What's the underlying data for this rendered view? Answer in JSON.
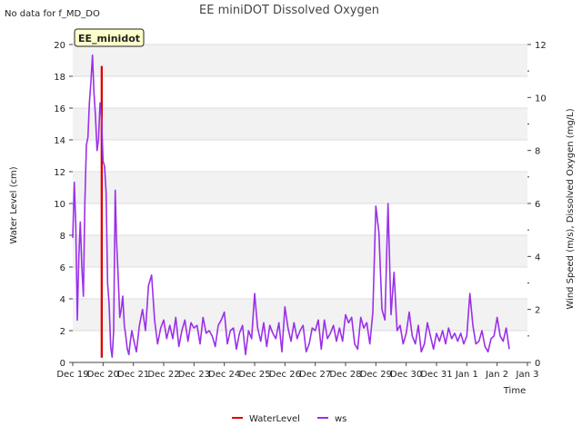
{
  "status_text": "No data for f_MD_DO",
  "site_label": "EE_minidot",
  "chart_data": {
    "type": "line",
    "title": "EE miniDOT Dissolved Oxygen",
    "xlabel": "Time",
    "ylabel_left": "Water Level (cm)",
    "ylabel_right": "Wind Speed (m/s), Dissolved Oxygen (mg/L)",
    "x_range_days": [
      0,
      15
    ],
    "x_ticks": [
      {
        "day": 0,
        "label": "Dec 19"
      },
      {
        "day": 1,
        "label": "Dec 20"
      },
      {
        "day": 2,
        "label": "Dec 21"
      },
      {
        "day": 3,
        "label": "Dec 22"
      },
      {
        "day": 4,
        "label": "Dec 23"
      },
      {
        "day": 5,
        "label": "Dec 24"
      },
      {
        "day": 6,
        "label": "Dec 25"
      },
      {
        "day": 7,
        "label": "Dec 26"
      },
      {
        "day": 8,
        "label": "Dec 27"
      },
      {
        "day": 9,
        "label": "Dec 28"
      },
      {
        "day": 10,
        "label": "Dec 29"
      },
      {
        "day": 11,
        "label": "Dec 30"
      },
      {
        "day": 12,
        "label": "Dec 31"
      },
      {
        "day": 13,
        "label": "Jan 1"
      },
      {
        "day": 14,
        "label": "Jan 2"
      },
      {
        "day": 15,
        "label": "Jan 3"
      }
    ],
    "ylim_left": [
      0,
      20
    ],
    "yticks_left": [
      0,
      2,
      4,
      6,
      8,
      10,
      12,
      14,
      16,
      18,
      20
    ],
    "ylim_right": [
      0,
      12
    ],
    "yticks_right": [
      0,
      2,
      4,
      6,
      8,
      10,
      12
    ],
    "series": [
      {
        "name": "WaterLevel",
        "axis": "left",
        "color": "#dd0000",
        "x": [
          0.95,
          0.95,
          0.96,
          0.96
        ],
        "y": [
          0.3,
          18.6,
          18.6,
          0.3
        ]
      },
      {
        "name": "ws",
        "axis": "right",
        "color": "#9b30e8",
        "x": [
          0.0,
          0.05,
          0.1,
          0.15,
          0.2,
          0.25,
          0.3,
          0.35,
          0.4,
          0.45,
          0.5,
          0.55,
          0.6,
          0.65,
          0.7,
          0.75,
          0.8,
          0.85,
          0.9,
          0.95,
          1.0,
          1.05,
          1.1,
          1.15,
          1.2,
          1.25,
          1.3,
          1.35,
          1.4,
          1.45,
          1.5,
          1.55,
          1.6,
          1.65,
          1.7,
          1.75,
          1.8,
          1.85,
          1.9,
          1.95,
          2.0,
          2.1,
          2.2,
          2.3,
          2.4,
          2.5,
          2.6,
          2.7,
          2.8,
          2.9,
          3.0,
          3.1,
          3.2,
          3.3,
          3.4,
          3.5,
          3.6,
          3.7,
          3.8,
          3.9,
          4.0,
          4.1,
          4.2,
          4.3,
          4.4,
          4.5,
          4.6,
          4.7,
          4.8,
          4.9,
          5.0,
          5.1,
          5.2,
          5.3,
          5.4,
          5.5,
          5.6,
          5.7,
          5.8,
          5.9,
          6.0,
          6.1,
          6.2,
          6.3,
          6.4,
          6.5,
          6.6,
          6.7,
          6.8,
          6.9,
          7.0,
          7.1,
          7.2,
          7.3,
          7.4,
          7.5,
          7.6,
          7.7,
          7.8,
          7.9,
          8.0,
          8.1,
          8.2,
          8.3,
          8.4,
          8.5,
          8.6,
          8.7,
          8.8,
          8.9,
          9.0,
          9.1,
          9.2,
          9.3,
          9.4,
          9.5,
          9.6,
          9.7,
          9.8,
          9.9,
          10.0,
          10.1,
          10.2,
          10.3,
          10.4,
          10.5,
          10.6,
          10.7,
          10.8,
          10.9,
          11.0,
          11.1,
          11.2,
          11.3,
          11.4,
          11.5,
          11.6,
          11.7,
          11.8,
          11.9,
          12.0,
          12.1,
          12.2,
          12.3,
          12.4,
          12.5,
          12.6,
          12.7,
          12.8,
          12.9,
          13.0,
          13.1,
          13.2,
          13.3,
          13.4,
          13.5,
          13.6,
          13.7,
          13.8,
          13.9,
          14.0,
          14.1,
          14.2,
          14.3,
          14.4
        ],
        "y": [
          4.7,
          6.8,
          5.2,
          1.6,
          4.0,
          5.3,
          3.6,
          2.5,
          6.0,
          8.2,
          8.5,
          9.8,
          10.6,
          11.6,
          10.2,
          9.3,
          8.0,
          8.4,
          9.8,
          9.2,
          7.6,
          7.4,
          6.4,
          3.0,
          2.2,
          0.6,
          0.2,
          1.2,
          6.5,
          4.5,
          3.2,
          1.7,
          2.0,
          2.5,
          1.4,
          1.0,
          0.5,
          0.3,
          0.8,
          1.2,
          0.9,
          0.4,
          1.4,
          2.0,
          1.2,
          2.9,
          3.3,
          1.6,
          0.7,
          1.3,
          1.6,
          0.9,
          1.4,
          0.9,
          1.7,
          0.6,
          1.2,
          1.6,
          0.8,
          1.5,
          1.3,
          1.4,
          0.7,
          1.7,
          1.1,
          1.2,
          1.0,
          0.6,
          1.4,
          1.6,
          1.9,
          0.7,
          1.2,
          1.3,
          0.5,
          1.1,
          1.4,
          0.3,
          1.2,
          0.9,
          2.6,
          1.3,
          0.8,
          1.5,
          0.6,
          1.4,
          1.1,
          0.9,
          1.5,
          0.4,
          2.1,
          1.3,
          0.8,
          1.5,
          0.9,
          1.2,
          1.4,
          0.4,
          0.7,
          1.3,
          1.2,
          1.6,
          0.5,
          1.6,
          0.9,
          1.1,
          1.4,
          0.8,
          1.3,
          0.8,
          1.8,
          1.5,
          1.7,
          0.7,
          0.5,
          1.7,
          1.3,
          1.5,
          0.7,
          1.9,
          5.9,
          4.9,
          2.0,
          1.6,
          6.0,
          1.8,
          3.4,
          1.2,
          1.4,
          0.7,
          1.1,
          1.9,
          1.0,
          0.7,
          1.4,
          0.4,
          0.7,
          1.5,
          1.0,
          0.5,
          1.1,
          0.8,
          1.2,
          0.7,
          1.3,
          0.9,
          1.1,
          0.8,
          1.1,
          0.7,
          1.0,
          2.6,
          1.4,
          0.7,
          0.8,
          1.2,
          0.6,
          0.4,
          0.9,
          1.0,
          1.7,
          1.0,
          0.8,
          1.3,
          0.5
        ]
      }
    ],
    "legend": {
      "position": "bottom-center",
      "entries": [
        "WaterLevel",
        "ws"
      ]
    }
  }
}
